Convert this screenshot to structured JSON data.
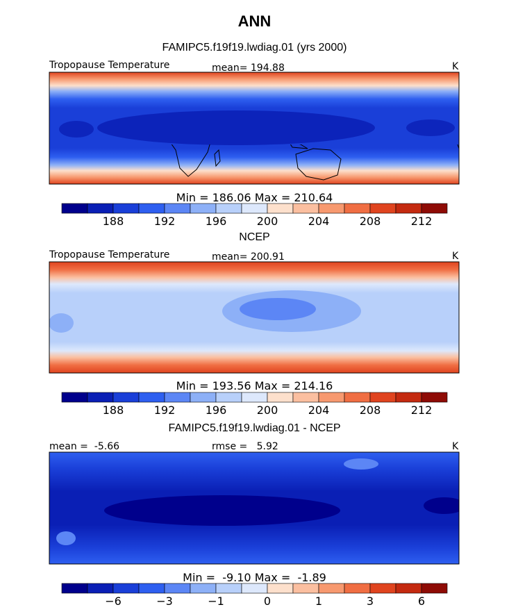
{
  "title": "ANN",
  "panels": [
    {
      "title": "FAMIPC5.f19f19.lwdiag.01 (yrs 2000)",
      "left_label": "Tropopause Temperature",
      "center_label": "mean= 194.88",
      "units": "K",
      "minmax": "Min = 186.06 Max = 210.64",
      "colorbar_ticks": [
        "188",
        "192",
        "196",
        "200",
        "204",
        "208",
        "212"
      ]
    },
    {
      "title": "NCEP",
      "left_label": "Tropopause Temperature",
      "center_label": "mean= 200.91",
      "units": "K",
      "minmax": "Min = 193.56 Max = 214.16",
      "colorbar_ticks": [
        "188",
        "192",
        "196",
        "200",
        "204",
        "208",
        "212"
      ]
    },
    {
      "title": "FAMIPC5.f19f19.lwdiag.01 - NCEP",
      "left_label": "mean =  -5.66",
      "center_label": "rmse =   5.92",
      "units": "K",
      "minmax": "Min =  -9.10 Max =  -1.89",
      "colorbar_ticks": [
        "−6",
        "−3",
        "−1",
        "0",
        "1",
        "3",
        "6"
      ]
    }
  ],
  "colorbar_colors": [
    "#00008c",
    "#0a1fb5",
    "#1a3fd8",
    "#2e5ff0",
    "#5c86f5",
    "#8db0f7",
    "#b8d0fa",
    "#dde8fc",
    "#fde0cc",
    "#fbbfa0",
    "#f7996f",
    "#f06e43",
    "#e0441f",
    "#c42a10",
    "#8e0b05"
  ]
}
